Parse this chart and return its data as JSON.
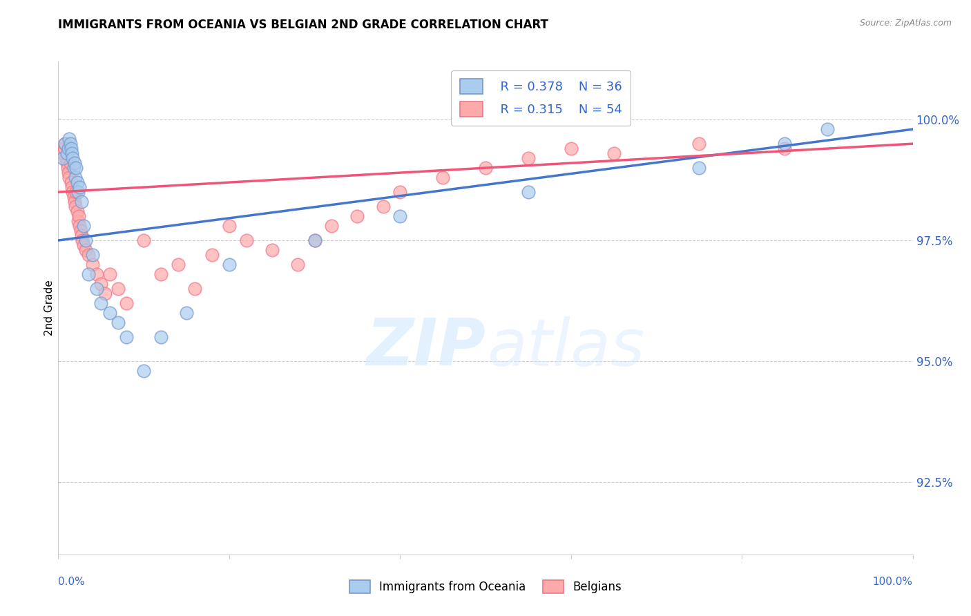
{
  "title": "IMMIGRANTS FROM OCEANIA VS BELGIAN 2ND GRADE CORRELATION CHART",
  "source": "Source: ZipAtlas.com",
  "ylabel": "2nd Grade",
  "ytick_values": [
    92.5,
    95.0,
    97.5,
    100.0
  ],
  "xmin": 0.0,
  "xmax": 100.0,
  "ymin": 91.0,
  "ymax": 101.2,
  "legend_r_oceania": "R = 0.378",
  "legend_n_oceania": "N = 36",
  "legend_r_belgian": "R = 0.315",
  "legend_n_belgian": "N = 54",
  "color_oceania_fill": "#AACCEE",
  "color_oceania_edge": "#7799CC",
  "color_belgian_fill": "#FFAAAA",
  "color_belgian_edge": "#EE7788",
  "color_oceania_line": "#4477CC",
  "color_belgian_line": "#EE5577",
  "scatter_oceania_x": [
    0.5,
    0.8,
    1.0,
    1.2,
    1.3,
    1.4,
    1.5,
    1.6,
    1.7,
    1.8,
    1.9,
    2.0,
    2.1,
    2.2,
    2.3,
    2.5,
    2.7,
    3.0,
    3.2,
    3.5,
    4.0,
    4.5,
    5.0,
    6.0,
    7.0,
    8.0,
    10.0,
    12.0,
    15.0,
    20.0,
    30.0,
    40.0,
    55.0,
    75.0,
    85.0,
    90.0
  ],
  "scatter_oceania_y": [
    99.2,
    99.5,
    99.3,
    99.4,
    99.6,
    99.5,
    99.4,
    99.3,
    99.2,
    99.0,
    99.1,
    98.8,
    99.0,
    98.7,
    98.5,
    98.6,
    98.3,
    97.8,
    97.5,
    96.8,
    97.2,
    96.5,
    96.2,
    96.0,
    95.8,
    95.5,
    94.8,
    95.5,
    96.0,
    97.0,
    97.5,
    98.0,
    98.5,
    99.0,
    99.5,
    99.8
  ],
  "scatter_belgian_x": [
    0.5,
    0.7,
    0.8,
    0.9,
    1.0,
    1.1,
    1.2,
    1.3,
    1.4,
    1.5,
    1.6,
    1.7,
    1.8,
    1.9,
    2.0,
    2.1,
    2.2,
    2.3,
    2.4,
    2.5,
    2.6,
    2.7,
    2.8,
    3.0,
    3.2,
    3.5,
    4.0,
    4.5,
    5.0,
    5.5,
    6.0,
    7.0,
    8.0,
    10.0,
    12.0,
    14.0,
    16.0,
    18.0,
    20.0,
    22.0,
    25.0,
    28.0,
    30.0,
    32.0,
    35.0,
    38.0,
    40.0,
    45.0,
    50.0,
    55.0,
    60.0,
    65.0,
    75.0,
    85.0
  ],
  "scatter_belgian_y": [
    99.3,
    99.4,
    99.5,
    99.2,
    99.1,
    99.0,
    98.9,
    98.8,
    99.1,
    98.7,
    98.6,
    98.5,
    98.4,
    98.3,
    98.2,
    98.5,
    98.1,
    97.9,
    98.0,
    97.8,
    97.7,
    97.6,
    97.5,
    97.4,
    97.3,
    97.2,
    97.0,
    96.8,
    96.6,
    96.4,
    96.8,
    96.5,
    96.2,
    97.5,
    96.8,
    97.0,
    96.5,
    97.2,
    97.8,
    97.5,
    97.3,
    97.0,
    97.5,
    97.8,
    98.0,
    98.2,
    98.5,
    98.8,
    99.0,
    99.2,
    99.4,
    99.3,
    99.5,
    99.4
  ],
  "trend_oceania_start_y": 97.5,
  "trend_oceania_end_y": 99.8,
  "trend_belgian_start_y": 98.5,
  "trend_belgian_end_y": 99.5
}
